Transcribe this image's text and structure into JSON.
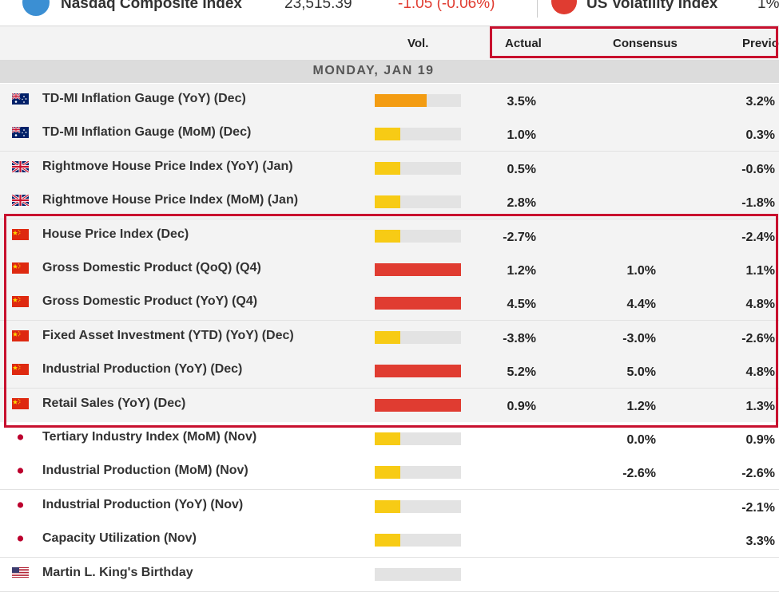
{
  "ticker": {
    "index1_name": "Nasdaq Composite Index",
    "index1_value": "23,515.39",
    "index1_change": "-1.05 (-0.06%)",
    "index2_name": "US Volatility Index",
    "index2_value": "1%"
  },
  "header": {
    "vol": "Vol.",
    "actual": "Actual",
    "consensus": "Consensus",
    "previous": "Previous"
  },
  "date_label": "MONDAY, JAN 19",
  "colors": {
    "orange": "#f39c12",
    "yellow": "#f7cb15",
    "red": "#e03c31",
    "highlight": "#c8102e"
  },
  "events": [
    {
      "flag": "australia-flag-icon",
      "name": "TD-MI Inflation Gauge (YoY) (Dec)",
      "vol_level": 0.6,
      "vol_color": "orange",
      "actual": "3.5%",
      "consensus": "",
      "previous": "3.2%"
    },
    {
      "flag": "australia-flag-icon",
      "name": "TD-MI Inflation Gauge (MoM) (Dec)",
      "vol_level": 0.3,
      "vol_color": "yellow",
      "actual": "1.0%",
      "consensus": "",
      "previous": "0.3%"
    },
    {
      "flag": "uk-flag-icon",
      "name": "Rightmove House Price Index (YoY) (Jan)",
      "vol_level": 0.3,
      "vol_color": "yellow",
      "actual": "0.5%",
      "consensus": "",
      "previous": "-0.6%"
    },
    {
      "flag": "uk-flag-icon",
      "name": "Rightmove House Price Index (MoM) (Jan)",
      "vol_level": 0.3,
      "vol_color": "yellow",
      "actual": "2.8%",
      "consensus": "",
      "previous": "-1.8%"
    },
    {
      "flag": "china-flag-icon",
      "name": "House Price Index (Dec)",
      "vol_level": 0.3,
      "vol_color": "yellow",
      "actual": "-2.7%",
      "consensus": "",
      "previous": "-2.4%"
    },
    {
      "flag": "china-flag-icon",
      "name": "Gross Domestic Product (QoQ) (Q4)",
      "vol_level": 1.0,
      "vol_color": "red",
      "actual": "1.2%",
      "consensus": "1.0%",
      "previous": "1.1%"
    },
    {
      "flag": "china-flag-icon",
      "name": "Gross Domestic Product (YoY) (Q4)",
      "vol_level": 1.0,
      "vol_color": "red",
      "actual": "4.5%",
      "consensus": "4.4%",
      "previous": "4.8%"
    },
    {
      "flag": "china-flag-icon",
      "name": "Fixed Asset Investment (YTD) (YoY) (Dec)",
      "vol_level": 0.3,
      "vol_color": "yellow",
      "actual": "-3.8%",
      "consensus": "-3.0%",
      "previous": "-2.6%"
    },
    {
      "flag": "china-flag-icon",
      "name": "Industrial Production (YoY) (Dec)",
      "vol_level": 1.0,
      "vol_color": "red",
      "actual": "5.2%",
      "consensus": "5.0%",
      "previous": "4.8%"
    },
    {
      "flag": "china-flag-icon",
      "name": "Retail Sales (YoY) (Dec)",
      "vol_level": 1.0,
      "vol_color": "red",
      "actual": "0.9%",
      "consensus": "1.2%",
      "previous": "1.3%"
    },
    {
      "flag": "japan-flag-icon",
      "name": "Tertiary Industry Index (MoM) (Nov)",
      "vol_level": 0.3,
      "vol_color": "yellow",
      "actual": "",
      "consensus": "0.0%",
      "previous": "0.9%"
    },
    {
      "flag": "japan-flag-icon",
      "name": "Industrial Production (MoM) (Nov)",
      "vol_level": 0.3,
      "vol_color": "yellow",
      "actual": "",
      "consensus": "-2.6%",
      "previous": "-2.6%"
    },
    {
      "flag": "japan-flag-icon",
      "name": "Industrial Production (YoY) (Nov)",
      "vol_level": 0.3,
      "vol_color": "yellow",
      "actual": "",
      "consensus": "",
      "previous": "-2.1%"
    },
    {
      "flag": "japan-flag-icon",
      "name": "Capacity Utilization (Nov)",
      "vol_level": 0.3,
      "vol_color": "yellow",
      "actual": "",
      "consensus": "",
      "previous": "3.3%"
    },
    {
      "flag": "usa-flag-icon",
      "name": "Martin L. King's Birthday",
      "vol_level": 0,
      "vol_color": "yellow",
      "actual": "",
      "consensus": "",
      "previous": ""
    }
  ]
}
